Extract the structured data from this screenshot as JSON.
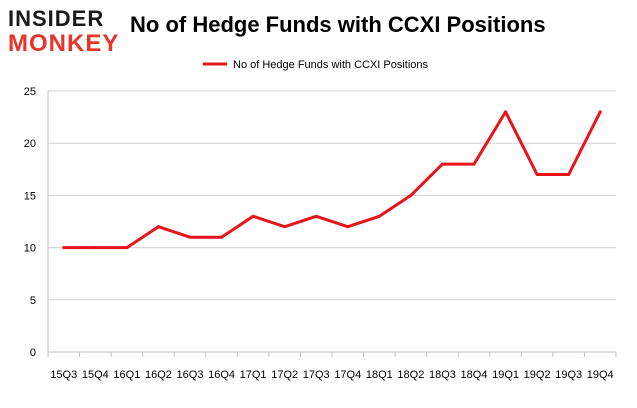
{
  "logo": {
    "line1": "INSIDER",
    "line2": "MONKEY"
  },
  "chart_data": {
    "type": "line",
    "title": "No of Hedge Funds with CCXI Positions",
    "categories": [
      "15Q3",
      "15Q4",
      "16Q1",
      "16Q2",
      "16Q3",
      "16Q4",
      "17Q1",
      "17Q2",
      "17Q3",
      "17Q4",
      "18Q1",
      "18Q2",
      "18Q3",
      "18Q4",
      "19Q1",
      "19Q2",
      "19Q3",
      "19Q4"
    ],
    "series": [
      {
        "name": "No of Hedge Funds with CCXI Positions",
        "values": [
          10,
          10,
          10,
          12,
          11,
          11,
          13,
          12,
          13,
          12,
          13,
          15,
          18,
          18,
          23,
          17,
          17,
          23
        ],
        "color": "#e8141b"
      }
    ],
    "ylim": [
      0,
      25
    ],
    "yticks": [
      0,
      5,
      10,
      15,
      20,
      25
    ],
    "grid": true,
    "legend_position": "top-center",
    "xlabel": "",
    "ylabel": ""
  }
}
